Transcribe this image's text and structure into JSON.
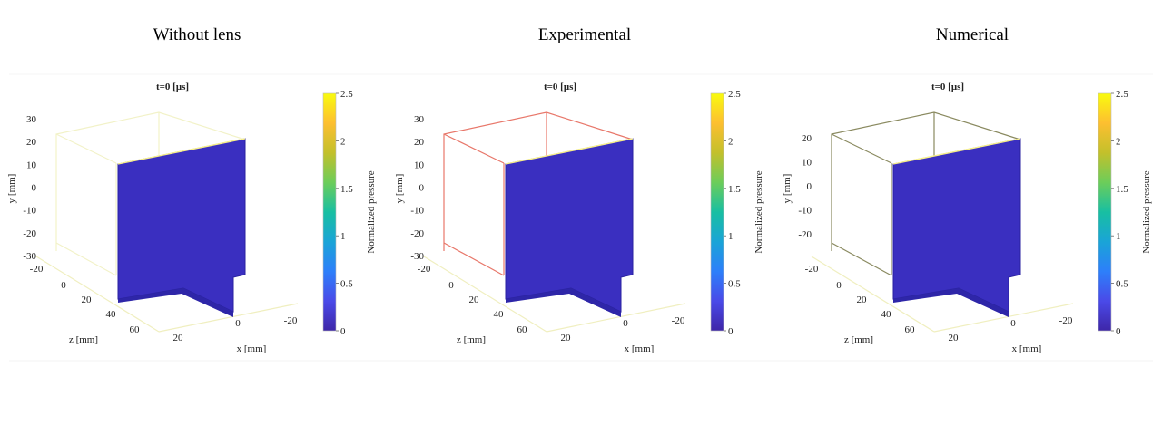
{
  "chart_data": [
    {
      "type": "3d-surface",
      "title": "Without lens",
      "subtitle": "t=0 [μs]",
      "xlabel": "x [mm]",
      "ylabel": "y [mm]",
      "zlabel": "z [mm]",
      "x_ticks": [
        "20",
        "0",
        "-20"
      ],
      "y_ticks": [
        "30",
        "20",
        "10",
        "0",
        "-10",
        "-20",
        "-30"
      ],
      "z_ticks": [
        "-20",
        "0",
        "20",
        "40",
        "60"
      ],
      "colorbar": {
        "label": "Normalized pressure",
        "ticks": [
          "0",
          "0.5",
          "1",
          "1.5",
          "2",
          "2.5"
        ],
        "range": [
          0,
          2.5
        ]
      },
      "surface_value": 0,
      "box_color": "#f2f2c8"
    },
    {
      "type": "3d-surface",
      "title": "Experimental",
      "subtitle": "t=0 [μs]",
      "xlabel": "x [mm]",
      "ylabel": "y [mm]",
      "zlabel": "z [mm]",
      "x_ticks": [
        "20",
        "0",
        "-20"
      ],
      "y_ticks": [
        "30",
        "20",
        "10",
        "0",
        "-10",
        "-20",
        "-30"
      ],
      "z_ticks": [
        "-20",
        "0",
        "20",
        "40",
        "60"
      ],
      "colorbar": {
        "label": "Normalized pressure",
        "ticks": [
          "0",
          "0.5",
          "1",
          "1.5",
          "2",
          "2.5"
        ],
        "range": [
          0,
          2.5
        ]
      },
      "surface_value": 0,
      "box_color": "#e8776a"
    },
    {
      "type": "3d-surface",
      "title": "Numerical",
      "subtitle": "t=0 [μs]",
      "xlabel": "x [mm]",
      "ylabel": "y [mm]",
      "zlabel": "z [mm]",
      "x_ticks": [
        "20",
        "0",
        "-20"
      ],
      "y_ticks": [
        "20",
        "10",
        "0",
        "-10",
        "-20"
      ],
      "z_ticks": [
        "-20",
        "0",
        "20",
        "40",
        "60"
      ],
      "colorbar": {
        "label": "Normalized pressure",
        "ticks": [
          "0",
          "0.5",
          "1",
          "1.5",
          "2",
          "2.5"
        ],
        "range": [
          0,
          2.5
        ]
      },
      "surface_value": 0,
      "box_color": "#8a8a60"
    }
  ],
  "colors": {
    "surface": "#3a2fc0",
    "surface_edge": "#2a22a0",
    "edge_highlight": "#f7f08a",
    "colormap": [
      "#f9fb0e",
      "#fdbf30",
      "#c3c02b",
      "#6ccd5a",
      "#18bfa2",
      "#1aa4d7",
      "#2d7ffa",
      "#4a4ae8",
      "#3e26a8"
    ]
  }
}
